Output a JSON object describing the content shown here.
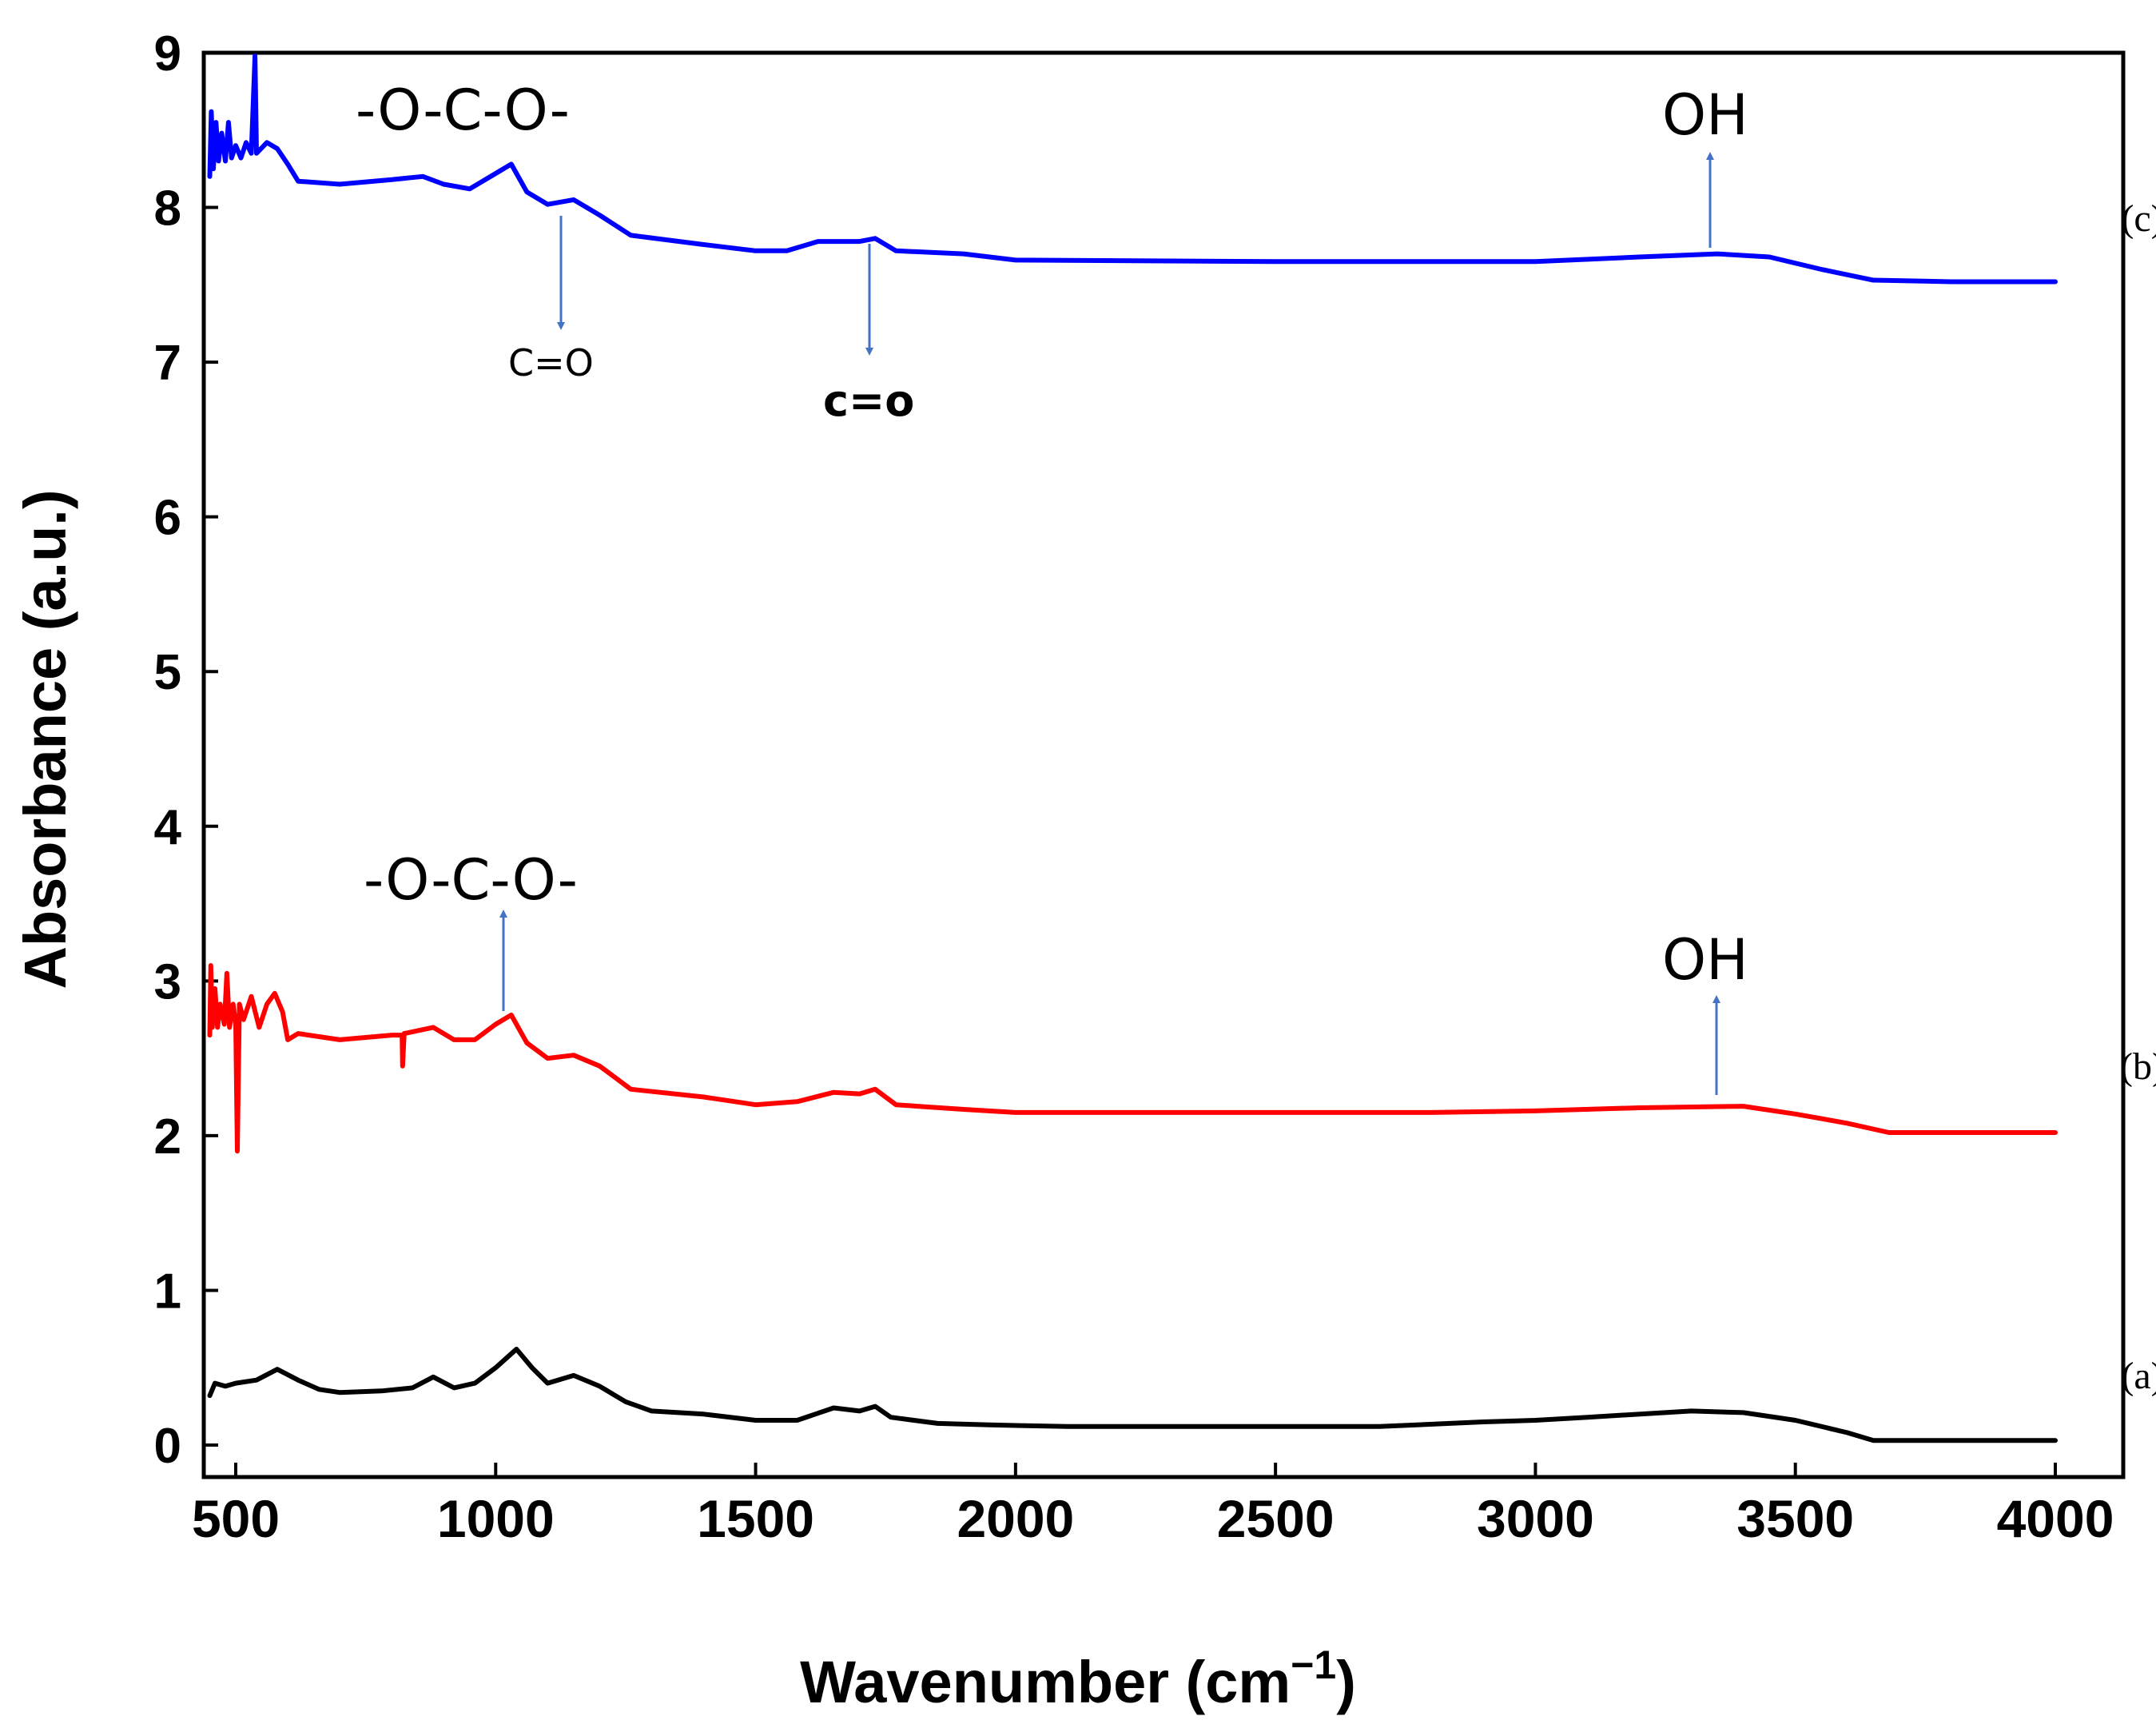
{
  "chart_data": {
    "type": "line",
    "title": "",
    "xlabel": "Wavenumber (cm",
    "xlabel_sup": "−1",
    "xlabel_close": ")",
    "ylabel": "Absorbance (a.u.)",
    "xlim": [
      440,
      4020
    ],
    "ylim": [
      -0.2,
      9
    ],
    "x_ticks": [
      500,
      1000,
      1500,
      2000,
      2500,
      3000,
      3500,
      4000
    ],
    "x_tick_labels": [
      "500",
      "1000",
      "1500",
      "2000",
      "2500",
      "3000",
      "3500",
      "4000"
    ],
    "y_ticks": [
      0,
      1,
      2,
      3,
      4,
      5,
      6,
      7,
      8,
      9
    ],
    "y_tick_labels": [
      "0",
      "1",
      "2",
      "3",
      "4",
      "5",
      "6",
      "7",
      "8",
      "9"
    ],
    "grid": false,
    "series": [
      {
        "name": "(a)",
        "color": "#000000",
        "label_pos": [
          4060,
          0.45
        ],
        "points": [
          [
            450,
            0.32
          ],
          [
            460,
            0.4
          ],
          [
            480,
            0.38
          ],
          [
            500,
            0.4
          ],
          [
            540,
            0.42
          ],
          [
            580,
            0.49
          ],
          [
            620,
            0.42
          ],
          [
            660,
            0.36
          ],
          [
            700,
            0.34
          ],
          [
            780,
            0.35
          ],
          [
            840,
            0.37
          ],
          [
            880,
            0.44
          ],
          [
            920,
            0.37
          ],
          [
            960,
            0.4
          ],
          [
            1000,
            0.5
          ],
          [
            1040,
            0.62
          ],
          [
            1070,
            0.5
          ],
          [
            1100,
            0.4
          ],
          [
            1150,
            0.45
          ],
          [
            1200,
            0.38
          ],
          [
            1250,
            0.28
          ],
          [
            1300,
            0.22
          ],
          [
            1400,
            0.2
          ],
          [
            1500,
            0.16
          ],
          [
            1580,
            0.16
          ],
          [
            1650,
            0.24
          ],
          [
            1700,
            0.22
          ],
          [
            1730,
            0.25
          ],
          [
            1760,
            0.18
          ],
          [
            1850,
            0.14
          ],
          [
            1950,
            0.13
          ],
          [
            2100,
            0.12
          ],
          [
            2400,
            0.12
          ],
          [
            2700,
            0.12
          ],
          [
            2900,
            0.15
          ],
          [
            3000,
            0.16
          ],
          [
            3100,
            0.18
          ],
          [
            3300,
            0.22
          ],
          [
            3400,
            0.21
          ],
          [
            3500,
            0.16
          ],
          [
            3600,
            0.08
          ],
          [
            3650,
            0.03
          ],
          [
            3800,
            0.03
          ],
          [
            4000,
            0.03
          ]
        ]
      },
      {
        "name": "(b)",
        "color": "#ff0000",
        "label_pos": [
          4060,
          2.45
        ],
        "points": [
          [
            450,
            2.65
          ],
          [
            452,
            3.1
          ],
          [
            455,
            2.7
          ],
          [
            460,
            2.95
          ],
          [
            465,
            2.7
          ],
          [
            470,
            2.85
          ],
          [
            478,
            2.72
          ],
          [
            483,
            3.05
          ],
          [
            488,
            2.7
          ],
          [
            495,
            2.85
          ],
          [
            500,
            2.72
          ],
          [
            503,
            1.9
          ],
          [
            507,
            2.85
          ],
          [
            515,
            2.75
          ],
          [
            530,
            2.9
          ],
          [
            545,
            2.7
          ],
          [
            560,
            2.85
          ],
          [
            575,
            2.92
          ],
          [
            590,
            2.8
          ],
          [
            600,
            2.62
          ],
          [
            620,
            2.66
          ],
          [
            700,
            2.62
          ],
          [
            800,
            2.65
          ],
          [
            820,
            2.65
          ],
          [
            821,
            2.45
          ],
          [
            824,
            2.66
          ],
          [
            880,
            2.7
          ],
          [
            920,
            2.62
          ],
          [
            960,
            2.62
          ],
          [
            1000,
            2.72
          ],
          [
            1030,
            2.78
          ],
          [
            1060,
            2.6
          ],
          [
            1100,
            2.5
          ],
          [
            1150,
            2.52
          ],
          [
            1200,
            2.45
          ],
          [
            1260,
            2.3
          ],
          [
            1400,
            2.25
          ],
          [
            1500,
            2.2
          ],
          [
            1580,
            2.22
          ],
          [
            1650,
            2.28
          ],
          [
            1700,
            2.27
          ],
          [
            1730,
            2.3
          ],
          [
            1770,
            2.2
          ],
          [
            1900,
            2.17
          ],
          [
            2000,
            2.15
          ],
          [
            2500,
            2.15
          ],
          [
            2800,
            2.15
          ],
          [
            3000,
            2.16
          ],
          [
            3200,
            2.18
          ],
          [
            3400,
            2.19
          ],
          [
            3500,
            2.14
          ],
          [
            3600,
            2.08
          ],
          [
            3680,
            2.02
          ],
          [
            3800,
            2.02
          ],
          [
            4000,
            2.02
          ]
        ]
      },
      {
        "name": "(c)",
        "color": "#0000ff",
        "label_pos": [
          4060,
          7.93
        ],
        "points": [
          [
            450,
            8.2
          ],
          [
            453,
            8.62
          ],
          [
            457,
            8.25
          ],
          [
            462,
            8.55
          ],
          [
            467,
            8.3
          ],
          [
            473,
            8.48
          ],
          [
            480,
            8.3
          ],
          [
            486,
            8.55
          ],
          [
            492,
            8.32
          ],
          [
            500,
            8.4
          ],
          [
            510,
            8.32
          ],
          [
            520,
            8.42
          ],
          [
            530,
            8.35
          ],
          [
            537,
            8.98
          ],
          [
            540,
            8.35
          ],
          [
            560,
            8.42
          ],
          [
            580,
            8.38
          ],
          [
            600,
            8.28
          ],
          [
            620,
            8.17
          ],
          [
            700,
            8.15
          ],
          [
            800,
            8.18
          ],
          [
            860,
            8.2
          ],
          [
            900,
            8.15
          ],
          [
            950,
            8.12
          ],
          [
            1000,
            8.22
          ],
          [
            1030,
            8.28
          ],
          [
            1060,
            8.1
          ],
          [
            1100,
            8.02
          ],
          [
            1150,
            8.05
          ],
          [
            1200,
            7.95
          ],
          [
            1260,
            7.82
          ],
          [
            1400,
            7.76
          ],
          [
            1500,
            7.72
          ],
          [
            1560,
            7.72
          ],
          [
            1620,
            7.78
          ],
          [
            1700,
            7.78
          ],
          [
            1730,
            7.8
          ],
          [
            1770,
            7.72
          ],
          [
            1900,
            7.7
          ],
          [
            2000,
            7.66
          ],
          [
            2500,
            7.65
          ],
          [
            3000,
            7.65
          ],
          [
            3200,
            7.68
          ],
          [
            3350,
            7.7
          ],
          [
            3450,
            7.68
          ],
          [
            3550,
            7.6
          ],
          [
            3650,
            7.53
          ],
          [
            3800,
            7.52
          ],
          [
            4000,
            7.52
          ]
        ]
      }
    ],
    "annotations": {
      "oco_c": "-O-C-O-",
      "oco_b": "-O-C-O-",
      "oh_c": "OH",
      "oh_b": "OH",
      "co_1": "C=O",
      "co_2": "c=o"
    },
    "arrow_color": "#4472c4"
  }
}
